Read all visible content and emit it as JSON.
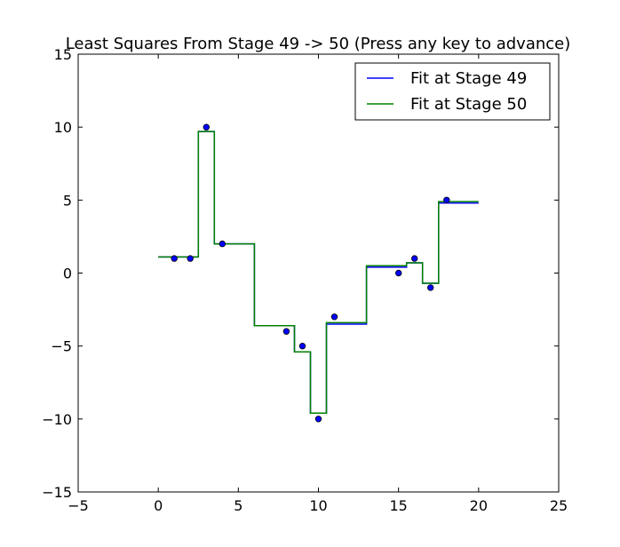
{
  "chart_data": {
    "type": "line",
    "title": "Least Squares From Stage 49 -> 50 (Press any key to advance)",
    "xlabel": "",
    "ylabel": "",
    "xlim": [
      -5,
      25
    ],
    "ylim": [
      -15,
      15
    ],
    "x_ticks": [
      -5,
      0,
      5,
      10,
      15,
      20,
      25
    ],
    "y_ticks": [
      -15,
      -10,
      -5,
      0,
      5,
      10,
      15
    ],
    "x_tick_labels": [
      "−5",
      "0",
      "5",
      "10",
      "15",
      "20",
      "25"
    ],
    "y_tick_labels": [
      "−15",
      "−10",
      "−5",
      "0",
      "5",
      "10",
      "15"
    ],
    "grid": false,
    "legend_position": "top-right",
    "series": [
      {
        "name": "Fit at Stage 49",
        "color": "#0000ff",
        "x": [
          0,
          2.5,
          2.5,
          3.5,
          3.5,
          6,
          6,
          8.5,
          8.5,
          9.5,
          9.5,
          10.5,
          10.5,
          13,
          13,
          15.5,
          15.5,
          16.5,
          16.5,
          17.5,
          17.5,
          20
        ],
        "y": [
          1.1,
          1.1,
          9.7,
          9.7,
          2.0,
          2.0,
          -3.6,
          -3.6,
          -5.4,
          -5.4,
          -9.6,
          -9.6,
          -3.5,
          -3.5,
          0.4,
          0.4,
          0.7,
          0.7,
          -0.7,
          -0.7,
          4.8,
          4.8
        ]
      },
      {
        "name": "Fit at Stage 50",
        "color": "#008000",
        "x": [
          0,
          2.5,
          2.5,
          3.5,
          3.5,
          6,
          6,
          8.5,
          8.5,
          9.5,
          9.5,
          10.5,
          10.5,
          13,
          13,
          15.5,
          15.5,
          16.5,
          16.5,
          17.5,
          17.5,
          20
        ],
        "y": [
          1.1,
          1.1,
          9.7,
          9.7,
          2.0,
          2.0,
          -3.6,
          -3.6,
          -5.4,
          -5.4,
          -9.6,
          -9.6,
          -3.4,
          -3.4,
          0.5,
          0.5,
          0.7,
          0.7,
          -0.7,
          -0.7,
          4.9,
          4.9
        ]
      }
    ],
    "scatter": {
      "name": "data points",
      "color": "#0000ff",
      "x": [
        1,
        2,
        3,
        4,
        8,
        9,
        10,
        11,
        15,
        16,
        17,
        18
      ],
      "y": [
        1,
        1,
        10,
        2,
        -4,
        -5,
        -10,
        -3,
        0,
        1,
        -1,
        5
      ]
    }
  }
}
